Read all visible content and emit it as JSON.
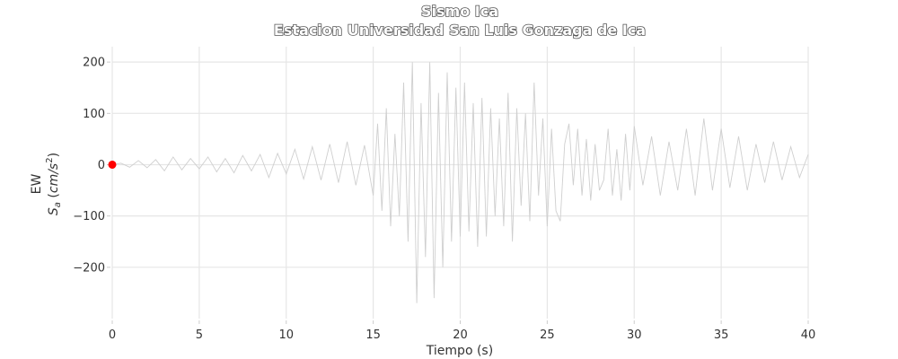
{
  "chart_data": {
    "type": "line",
    "title": "Sismo Ica",
    "subtitle": "Estacion Universidad San Luis Gonzaga de Ica",
    "xlabel": "Tiempo (s)",
    "ylabel_line1": "EW",
    "ylabel_line2": "S_a (cm/s^2)",
    "xlim": [
      0,
      40
    ],
    "ylim": [
      -300,
      230
    ],
    "xticks": [
      0,
      5,
      10,
      15,
      20,
      25,
      30,
      35,
      40
    ],
    "xtick_labels": [
      "0",
      "5",
      "10",
      "15",
      "20",
      "25",
      "30",
      "35",
      "40"
    ],
    "yticks": [
      200,
      100,
      0,
      -100,
      -200
    ],
    "ytick_labels": [
      "200",
      "100",
      "0",
      "−100",
      "−200"
    ],
    "grid": true,
    "series": [
      {
        "color": "#cfcfcf",
        "x": [
          0,
          0.5,
          1,
          1.5,
          2,
          2.5,
          3,
          3.5,
          4,
          4.5,
          5,
          5.5,
          6,
          6.5,
          7,
          7.5,
          8,
          8.5,
          9,
          9.5,
          10,
          10.5,
          11,
          11.5,
          12,
          12.5,
          13,
          13.5,
          14,
          14.5,
          15,
          15.25,
          15.5,
          15.75,
          16,
          16.25,
          16.5,
          16.75,
          17,
          17.25,
          17.5,
          17.75,
          18,
          18.25,
          18.5,
          18.75,
          19,
          19.25,
          19.5,
          19.75,
          20,
          20.25,
          20.5,
          20.75,
          21,
          21.25,
          21.5,
          21.75,
          22,
          22.25,
          22.5,
          22.75,
          23,
          23.25,
          23.5,
          23.75,
          24,
          24.25,
          24.5,
          24.75,
          25,
          25.25,
          25.5,
          25.75,
          26,
          26.25,
          26.5,
          26.75,
          27,
          27.25,
          27.5,
          27.75,
          28,
          28.25,
          28.5,
          28.75,
          29,
          29.25,
          29.5,
          29.75,
          30,
          30.5,
          31,
          31.5,
          32,
          32.5,
          33,
          33.5,
          34,
          34.5,
          35,
          35.5,
          36,
          36.5,
          37,
          37.5,
          38,
          38.5,
          39,
          39.5,
          40
        ],
        "y": [
          0,
          3,
          -5,
          8,
          -6,
          10,
          -12,
          15,
          -10,
          12,
          -8,
          15,
          -14,
          12,
          -16,
          18,
          -12,
          20,
          -25,
          22,
          -18,
          30,
          -28,
          35,
          -30,
          40,
          -35,
          45,
          -40,
          38,
          -60,
          80,
          -90,
          110,
          -120,
          60,
          -100,
          160,
          -150,
          200,
          -270,
          120,
          -180,
          200,
          -260,
          140,
          -200,
          180,
          -150,
          150,
          -140,
          160,
          -130,
          120,
          -160,
          130,
          -140,
          110,
          -100,
          90,
          -120,
          140,
          -150,
          110,
          -80,
          100,
          -110,
          160,
          -60,
          90,
          -120,
          70,
          -90,
          -110,
          40,
          80,
          -40,
          70,
          -60,
          50,
          -70,
          40,
          -50,
          -30,
          70,
          -60,
          30,
          -70,
          60,
          -50,
          75,
          -40,
          55,
          -60,
          45,
          -50,
          70,
          -60,
          90,
          -50,
          70,
          -45,
          55,
          -50,
          40,
          -35,
          45,
          -30,
          35,
          -25,
          20
        ]
      }
    ],
    "marker": {
      "x": 0,
      "y": 0,
      "color": "#ff0000"
    }
  }
}
